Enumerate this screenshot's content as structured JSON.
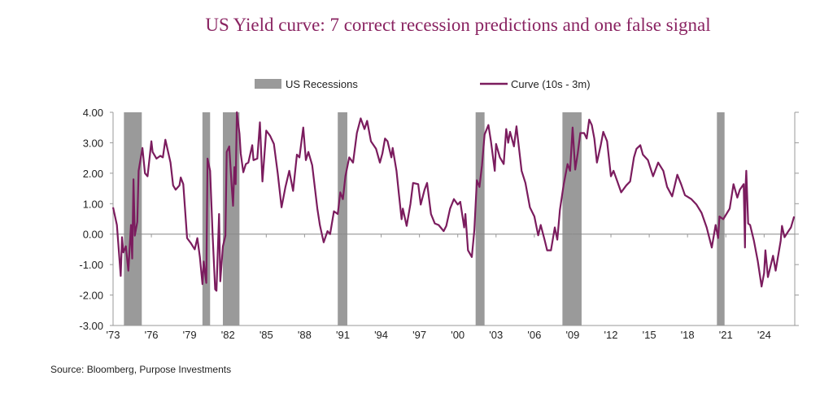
{
  "chart_data": {
    "type": "line",
    "title": "US Yield curve: 7 correct recession predictions and one false signal",
    "source": "Source: Bloomberg, Purpose Investments",
    "xlabel": "",
    "ylabel": "",
    "xlim": [
      1973,
      2026.4
    ],
    "ylim": [
      -3,
      4
    ],
    "y_ticks": [
      "4.00",
      "3.00",
      "2.00",
      "1.00",
      "0.00",
      "-1.00",
      "-2.00",
      "-3.00"
    ],
    "y_tick_values": [
      4,
      3,
      2,
      1,
      0,
      -1,
      -2,
      -3
    ],
    "x_ticks": [
      "'73",
      "'76",
      "'79",
      "'82",
      "'85",
      "'88",
      "'91",
      "'94",
      "'97",
      "'00",
      "'03",
      "'06",
      "'09",
      "'12",
      "'15",
      "'18",
      "'21",
      "'24"
    ],
    "x_tick_values": [
      1973,
      1976,
      1979,
      1982,
      1985,
      1988,
      1991,
      1994,
      1997,
      2000,
      2003,
      2006,
      2009,
      2012,
      2015,
      2018,
      2021,
      2024
    ],
    "legend_position": "top",
    "grid": false,
    "colors": {
      "line": "#7b1c5e",
      "recession": "#9a9a9a",
      "title": "#8a2462"
    },
    "recessions": {
      "name": "US Recessions",
      "periods": [
        [
          1973.85,
          1975.25
        ],
        [
          1980.0,
          1980.6
        ],
        [
          1981.6,
          1982.9
        ],
        [
          1990.6,
          1991.35
        ],
        [
          2001.4,
          2002.1
        ],
        [
          2008.2,
          2009.7
        ],
        [
          2020.3,
          2020.9
        ]
      ]
    },
    "series": [
      {
        "name": "Curve (10s - 3m)",
        "points": [
          [
            1973.0,
            0.88
          ],
          [
            1973.3,
            0.3
          ],
          [
            1973.6,
            -1.37
          ],
          [
            1973.7,
            -0.1
          ],
          [
            1973.8,
            -0.6
          ],
          [
            1974.0,
            -0.4
          ],
          [
            1974.2,
            -1.2
          ],
          [
            1974.4,
            0.3
          ],
          [
            1974.5,
            -0.8
          ],
          [
            1974.6,
            1.8
          ],
          [
            1974.7,
            -0.05
          ],
          [
            1974.9,
            0.4
          ],
          [
            1975.0,
            2.08
          ],
          [
            1975.3,
            2.83
          ],
          [
            1975.5,
            2.0
          ],
          [
            1975.7,
            1.9
          ],
          [
            1976.0,
            3.05
          ],
          [
            1976.1,
            2.7
          ],
          [
            1976.4,
            2.48
          ],
          [
            1976.7,
            2.57
          ],
          [
            1976.9,
            2.52
          ],
          [
            1977.1,
            3.1
          ],
          [
            1977.5,
            2.35
          ],
          [
            1977.7,
            1.6
          ],
          [
            1977.9,
            1.46
          ],
          [
            1978.2,
            1.6
          ],
          [
            1978.3,
            1.86
          ],
          [
            1978.5,
            1.64
          ],
          [
            1978.8,
            -0.13
          ],
          [
            1979.1,
            -0.3
          ],
          [
            1979.4,
            -0.5
          ],
          [
            1979.6,
            -0.13
          ],
          [
            1979.8,
            -0.75
          ],
          [
            1980.0,
            -1.64
          ],
          [
            1980.1,
            -0.9
          ],
          [
            1980.3,
            -1.6
          ],
          [
            1980.4,
            2.48
          ],
          [
            1980.6,
            2.08
          ],
          [
            1980.8,
            -0.05
          ],
          [
            1981.0,
            -1.81
          ],
          [
            1981.1,
            -1.86
          ],
          [
            1981.3,
            0.66
          ],
          [
            1981.4,
            -1.55
          ],
          [
            1981.6,
            -0.4
          ],
          [
            1981.8,
            -0.05
          ],
          [
            1981.9,
            2.7
          ],
          [
            1982.1,
            2.88
          ],
          [
            1982.3,
            1.55
          ],
          [
            1982.4,
            0.93
          ],
          [
            1982.5,
            2.2
          ],
          [
            1982.6,
            1.64
          ],
          [
            1982.7,
            4.0
          ],
          [
            1982.9,
            3.3
          ],
          [
            1983.0,
            2.65
          ],
          [
            1983.2,
            2.03
          ],
          [
            1983.4,
            2.3
          ],
          [
            1983.6,
            2.35
          ],
          [
            1983.9,
            2.92
          ],
          [
            1984.0,
            2.43
          ],
          [
            1984.3,
            2.48
          ],
          [
            1984.5,
            3.67
          ],
          [
            1984.7,
            1.73
          ],
          [
            1985.0,
            3.4
          ],
          [
            1985.3,
            3.23
          ],
          [
            1985.6,
            2.96
          ],
          [
            1985.9,
            2.0
          ],
          [
            1986.2,
            0.88
          ],
          [
            1986.5,
            1.55
          ],
          [
            1986.8,
            2.08
          ],
          [
            1987.1,
            1.42
          ],
          [
            1987.4,
            2.61
          ],
          [
            1987.6,
            2.52
          ],
          [
            1987.9,
            3.5
          ],
          [
            1988.1,
            2.43
          ],
          [
            1988.3,
            2.7
          ],
          [
            1988.6,
            2.26
          ],
          [
            1989.0,
            0.84
          ],
          [
            1989.2,
            0.3
          ],
          [
            1989.5,
            -0.27
          ],
          [
            1989.8,
            0.1
          ],
          [
            1990.0,
            0.0
          ],
          [
            1990.3,
            0.75
          ],
          [
            1990.6,
            0.66
          ],
          [
            1990.8,
            1.37
          ],
          [
            1991.0,
            1.15
          ],
          [
            1991.2,
            1.9
          ],
          [
            1991.5,
            2.52
          ],
          [
            1991.8,
            2.35
          ],
          [
            1992.1,
            3.32
          ],
          [
            1992.4,
            3.8
          ],
          [
            1992.7,
            3.45
          ],
          [
            1992.9,
            3.72
          ],
          [
            1993.2,
            3.05
          ],
          [
            1993.6,
            2.8
          ],
          [
            1993.9,
            2.35
          ],
          [
            1994.1,
            2.65
          ],
          [
            1994.3,
            3.14
          ],
          [
            1994.5,
            3.05
          ],
          [
            1994.8,
            2.52
          ],
          [
            1994.9,
            2.83
          ],
          [
            1995.2,
            2.08
          ],
          [
            1995.4,
            1.28
          ],
          [
            1995.6,
            0.49
          ],
          [
            1995.7,
            0.84
          ],
          [
            1996.0,
            0.27
          ],
          [
            1996.3,
            1.0
          ],
          [
            1996.5,
            1.68
          ],
          [
            1996.9,
            1.64
          ],
          [
            1997.1,
            0.97
          ],
          [
            1997.4,
            1.46
          ],
          [
            1997.6,
            1.68
          ],
          [
            1997.9,
            0.66
          ],
          [
            1998.2,
            0.35
          ],
          [
            1998.5,
            0.3
          ],
          [
            1998.9,
            0.1
          ],
          [
            1999.1,
            0.27
          ],
          [
            1999.4,
            0.84
          ],
          [
            1999.7,
            1.15
          ],
          [
            2000.0,
            0.97
          ],
          [
            2000.2,
            1.06
          ],
          [
            2000.5,
            0.22
          ],
          [
            2000.6,
            0.66
          ],
          [
            2000.8,
            -0.53
          ],
          [
            2001.1,
            -0.75
          ],
          [
            2001.3,
            0.13
          ],
          [
            2001.5,
            1.77
          ],
          [
            2001.7,
            1.55
          ],
          [
            2001.9,
            2.26
          ],
          [
            2002.1,
            3.27
          ],
          [
            2002.4,
            3.58
          ],
          [
            2002.6,
            3.05
          ],
          [
            2002.9,
            2.08
          ],
          [
            2003.0,
            2.96
          ],
          [
            2003.3,
            2.52
          ],
          [
            2003.6,
            2.3
          ],
          [
            2003.8,
            3.45
          ],
          [
            2003.95,
            3.0
          ],
          [
            2004.1,
            3.36
          ],
          [
            2004.4,
            2.88
          ],
          [
            2004.6,
            3.54
          ],
          [
            2005.0,
            2.08
          ],
          [
            2005.3,
            1.68
          ],
          [
            2005.65,
            0.88
          ],
          [
            2006.0,
            0.58
          ],
          [
            2006.3,
            -0.04
          ],
          [
            2006.5,
            0.3
          ],
          [
            2006.8,
            -0.18
          ],
          [
            2007.0,
            -0.53
          ],
          [
            2007.3,
            -0.53
          ],
          [
            2007.6,
            0.22
          ],
          [
            2007.8,
            -0.18
          ],
          [
            2008.0,
            0.8
          ],
          [
            2008.3,
            1.64
          ],
          [
            2008.6,
            2.3
          ],
          [
            2008.8,
            2.08
          ],
          [
            2009.0,
            3.5
          ],
          [
            2009.2,
            2.12
          ],
          [
            2009.4,
            2.65
          ],
          [
            2009.6,
            3.32
          ],
          [
            2009.9,
            3.32
          ],
          [
            2010.1,
            3.14
          ],
          [
            2010.3,
            3.76
          ],
          [
            2010.5,
            3.58
          ],
          [
            2010.7,
            3.14
          ],
          [
            2010.9,
            2.35
          ],
          [
            2011.2,
            2.92
          ],
          [
            2011.4,
            3.36
          ],
          [
            2011.7,
            3.05
          ],
          [
            2012.0,
            1.9
          ],
          [
            2012.2,
            2.08
          ],
          [
            2012.5,
            1.73
          ],
          [
            2012.8,
            1.37
          ],
          [
            2013.2,
            1.6
          ],
          [
            2013.5,
            1.73
          ],
          [
            2013.8,
            2.52
          ],
          [
            2014.0,
            2.8
          ],
          [
            2014.3,
            2.92
          ],
          [
            2014.5,
            2.61
          ],
          [
            2014.9,
            2.43
          ],
          [
            2015.3,
            1.9
          ],
          [
            2015.7,
            2.35
          ],
          [
            2016.1,
            2.08
          ],
          [
            2016.4,
            1.55
          ],
          [
            2016.8,
            1.24
          ],
          [
            2017.2,
            1.95
          ],
          [
            2017.5,
            1.64
          ],
          [
            2017.8,
            1.28
          ],
          [
            2018.3,
            1.15
          ],
          [
            2018.7,
            0.97
          ],
          [
            2019.1,
            0.7
          ],
          [
            2019.5,
            0.22
          ],
          [
            2019.9,
            -0.44
          ],
          [
            2020.2,
            0.3
          ],
          [
            2020.4,
            -0.13
          ],
          [
            2020.5,
            0.58
          ],
          [
            2020.8,
            0.49
          ],
          [
            2021.3,
            0.84
          ],
          [
            2021.6,
            1.64
          ],
          [
            2021.9,
            1.2
          ],
          [
            2022.1,
            1.46
          ],
          [
            2022.4,
            1.64
          ],
          [
            2022.5,
            -0.44
          ],
          [
            2022.55,
            1.6
          ],
          [
            2022.6,
            2.08
          ],
          [
            2022.75,
            0.35
          ],
          [
            2022.9,
            0.3
          ],
          [
            2023.2,
            -0.22
          ],
          [
            2023.5,
            -0.88
          ],
          [
            2023.8,
            -1.72
          ],
          [
            2024.0,
            -1.28
          ],
          [
            2024.1,
            -0.53
          ],
          [
            2024.3,
            -1.41
          ],
          [
            2024.7,
            -0.71
          ],
          [
            2024.9,
            -1.2
          ],
          [
            2025.3,
            -0.22
          ],
          [
            2025.4,
            0.27
          ],
          [
            2025.6,
            -0.1
          ],
          [
            2025.9,
            0.1
          ],
          [
            2026.1,
            0.22
          ],
          [
            2026.35,
            0.58
          ]
        ]
      }
    ]
  }
}
